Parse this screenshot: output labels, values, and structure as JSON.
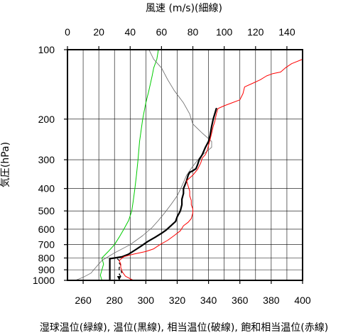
{
  "chart_data": {
    "type": "line",
    "title": "",
    "top_axis": {
      "label": "風速 (m/s)(細線)",
      "range": [
        0,
        150
      ],
      "ticks": [
        0,
        20,
        40,
        60,
        80,
        100,
        120,
        140
      ]
    },
    "bottom_axis": {
      "label": "湿球温位(緑線), 温位(黒線), 相当温位(破線), 飽和相当温位(赤線)",
      "range": [
        250,
        400
      ],
      "ticks": [
        260,
        280,
        300,
        320,
        340,
        360,
        380,
        400
      ]
    },
    "y_axis": {
      "label": "気圧(hPa)",
      "scale": "log",
      "reversed": true,
      "range": [
        1000,
        100
      ],
      "ticks": [
        100,
        200,
        300,
        400,
        500,
        600,
        700,
        800,
        900,
        1000
      ]
    },
    "grid": true,
    "series": [
      {
        "name": "湿球温位",
        "axis": "bottom",
        "color": "#00cc00",
        "width": 1,
        "points": [
          [
            272,
            1000
          ],
          [
            271,
            950
          ],
          [
            272,
            900
          ],
          [
            273,
            850
          ],
          [
            272,
            800
          ],
          [
            276,
            750
          ],
          [
            280,
            700
          ],
          [
            283,
            650
          ],
          [
            286,
            600
          ],
          [
            289,
            550
          ],
          [
            291,
            500
          ],
          [
            292,
            450
          ],
          [
            293,
            400
          ],
          [
            294,
            350
          ],
          [
            295,
            300
          ],
          [
            296,
            250
          ],
          [
            298,
            200
          ],
          [
            300,
            170
          ],
          [
            302,
            150
          ],
          [
            304,
            130
          ],
          [
            305,
            120
          ],
          [
            307,
            110
          ],
          [
            308,
            100
          ]
        ]
      },
      {
        "name": "風速",
        "axis": "top",
        "color": "#666666",
        "width": 0.8,
        "points": [
          [
            5,
            1000
          ],
          [
            10,
            970
          ],
          [
            15,
            930
          ],
          [
            18,
            880
          ],
          [
            22,
            820
          ],
          [
            30,
            760
          ],
          [
            40,
            700
          ],
          [
            48,
            640
          ],
          [
            54,
            590
          ],
          [
            58,
            550
          ],
          [
            62,
            510
          ],
          [
            66,
            470
          ],
          [
            70,
            430
          ],
          [
            73,
            390
          ],
          [
            76,
            350
          ],
          [
            80,
            320
          ],
          [
            85,
            290
          ],
          [
            92,
            265
          ],
          [
            92,
            250
          ],
          [
            86,
            230
          ],
          [
            80,
            210
          ],
          [
            78,
            190
          ],
          [
            74,
            170
          ],
          [
            68,
            150
          ],
          [
            64,
            135
          ],
          [
            60,
            120
          ],
          [
            55,
            110
          ],
          [
            52,
            100
          ]
        ]
      },
      {
        "name": "温位",
        "axis": "bottom",
        "color": "#000000",
        "width": 2.2,
        "points": [
          [
            277,
            1000
          ],
          [
            277,
            960
          ],
          [
            277,
            930
          ],
          [
            277,
            900
          ],
          [
            277,
            870
          ],
          [
            277,
            840
          ],
          [
            277,
            820
          ],
          [
            277,
            805
          ],
          [
            280,
            800
          ],
          [
            285,
            790
          ],
          [
            289,
            770
          ],
          [
            293,
            740
          ],
          [
            297,
            710
          ],
          [
            301,
            680
          ],
          [
            306,
            650
          ],
          [
            310,
            625
          ],
          [
            313,
            605
          ],
          [
            316,
            580
          ],
          [
            319,
            555
          ],
          [
            320,
            530
          ],
          [
            322,
            500
          ],
          [
            323,
            470
          ],
          [
            323,
            445
          ],
          [
            324,
            420
          ],
          [
            324,
            400
          ],
          [
            325,
            385
          ],
          [
            326,
            370
          ],
          [
            327,
            350
          ],
          [
            328,
            340
          ],
          [
            330,
            335
          ],
          [
            332,
            328
          ],
          [
            333,
            315
          ],
          [
            334,
            300
          ],
          [
            336,
            285
          ],
          [
            338,
            265
          ],
          [
            340,
            250
          ],
          [
            341,
            235
          ],
          [
            342,
            215
          ],
          [
            343,
            200
          ],
          [
            345,
            180
          ]
        ]
      },
      {
        "name": "相当温位",
        "axis": "bottom",
        "color": "#000000",
        "width": 1.2,
        "dashed": true,
        "points": [
          [
            283,
            1000
          ],
          [
            283,
            975
          ],
          [
            284,
            960
          ],
          [
            283,
            940
          ],
          [
            285,
            920
          ],
          [
            283,
            900
          ],
          [
            283,
            880
          ],
          [
            284,
            860
          ],
          [
            283,
            840
          ],
          [
            283,
            820
          ],
          [
            282,
            808
          ],
          [
            280,
            800
          ]
        ]
      },
      {
        "name": "飽和相当温位",
        "axis": "bottom",
        "color": "#ff0000",
        "width": 1,
        "points": [
          [
            292,
            1000
          ],
          [
            287,
            960
          ],
          [
            285,
            920
          ],
          [
            284,
            880
          ],
          [
            284,
            850
          ],
          [
            283,
            820
          ],
          [
            286,
            790
          ],
          [
            292,
            770
          ],
          [
            300,
            750
          ],
          [
            305,
            730
          ],
          [
            309,
            700
          ],
          [
            314,
            670
          ],
          [
            318,
            640
          ],
          [
            322,
            610
          ],
          [
            324,
            580
          ],
          [
            327,
            560
          ],
          [
            329,
            540
          ],
          [
            330,
            510
          ],
          [
            330,
            490
          ],
          [
            329,
            470
          ],
          [
            329,
            450
          ],
          [
            328,
            430
          ],
          [
            328,
            410
          ],
          [
            327,
            390
          ],
          [
            326,
            370
          ],
          [
            330,
            350
          ],
          [
            333,
            330
          ],
          [
            335,
            310
          ],
          [
            336,
            295
          ],
          [
            338,
            285
          ],
          [
            339,
            275
          ],
          [
            340,
            260
          ],
          [
            341,
            245
          ],
          [
            342,
            230
          ],
          [
            343,
            215
          ],
          [
            344,
            205
          ],
          [
            345,
            190
          ],
          [
            346,
            180
          ],
          [
            350,
            175
          ],
          [
            355,
            170
          ],
          [
            360,
            165
          ],
          [
            362,
            155
          ],
          [
            363,
            145
          ],
          [
            368,
            140
          ],
          [
            373,
            135
          ],
          [
            377,
            130
          ],
          [
            381,
            127
          ],
          [
            386,
            125
          ],
          [
            389,
            120
          ],
          [
            393,
            115
          ],
          [
            400,
            110
          ]
        ]
      }
    ]
  }
}
